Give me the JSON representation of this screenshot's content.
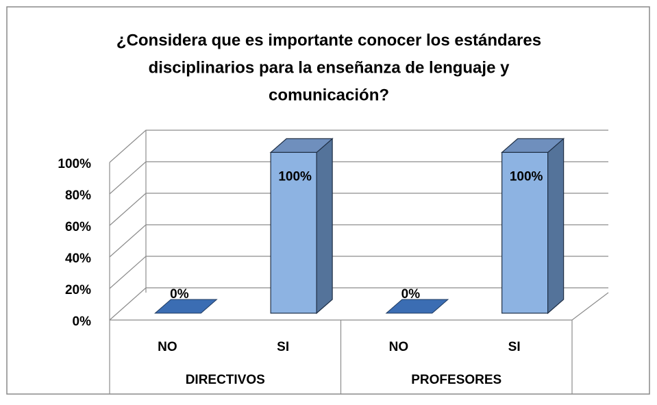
{
  "chart_data": {
    "type": "bar3d",
    "title": "¿Considera que es importante conocer los estándares disciplinarios para la enseñanza de lenguaje y comunicación?",
    "title_lines": [
      "¿Considera que es importante conocer los estándares",
      "disciplinarios para la enseñanza de lenguaje y",
      "comunicación?"
    ],
    "categories": [
      "NO",
      "SI",
      "NO",
      "SI"
    ],
    "category_groups": [
      "DIRECTIVOS",
      "PROFESORES"
    ],
    "values": [
      0,
      100,
      0,
      100
    ],
    "value_labels": [
      "0%",
      "100%",
      "0%",
      "100%"
    ],
    "color": "#8db3e2",
    "ylim": [
      0,
      100
    ],
    "yticks": [
      {
        "value": 0,
        "label": "0%"
      },
      {
        "value": 20,
        "label": "20%"
      },
      {
        "value": 40,
        "label": "40%"
      },
      {
        "value": 60,
        "label": "60%"
      },
      {
        "value": 80,
        "label": "80%"
      },
      {
        "value": 100,
        "label": "100%"
      }
    ],
    "grid": true
  }
}
